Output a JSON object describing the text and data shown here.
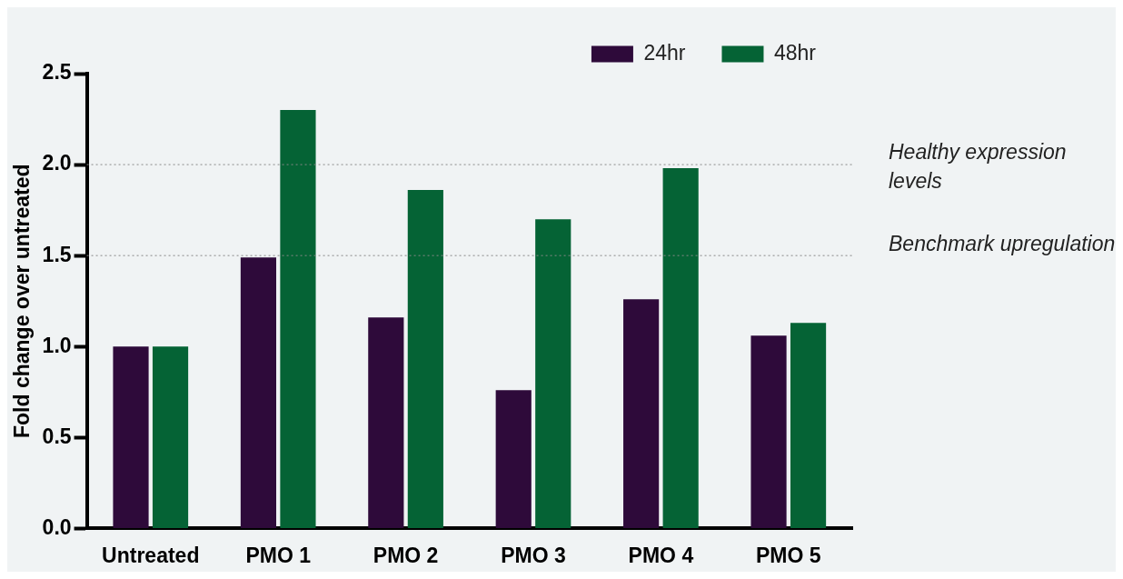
{
  "chart_data": {
    "type": "bar",
    "ylabel": "Fold change over untreated",
    "categories": [
      "Untreated",
      "PMO 1",
      "PMO 2",
      "PMO 3",
      "PMO 4",
      "PMO 5"
    ],
    "series": [
      {
        "name": "24hr",
        "color": "#2e0a3a",
        "values": [
          1.0,
          1.49,
          1.16,
          0.76,
          1.26,
          1.06
        ]
      },
      {
        "name": "48hr",
        "color": "#056335",
        "values": [
          1.0,
          2.3,
          1.86,
          1.7,
          1.98,
          1.13
        ]
      }
    ],
    "ylim": [
      0,
      2.5
    ],
    "yticks": [
      {
        "value": 0,
        "label": "0.0"
      },
      {
        "value": 0.5,
        "label": "0.5"
      },
      {
        "value": 1,
        "label": "1.0"
      },
      {
        "value": 1.5,
        "label": "1.5"
      },
      {
        "value": 2,
        "label": "2.0"
      },
      {
        "value": 2.5,
        "label": "2.5"
      }
    ],
    "ref_lines": [
      {
        "axis": "y",
        "value": 2,
        "label": "Healthy expression levels",
        "line_style": "dotted"
      },
      {
        "axis": "y",
        "value": 1.5,
        "label": "Benchmark upregulation",
        "line_style": "dotted"
      }
    ],
    "grid": false,
    "legend": "top right"
  }
}
